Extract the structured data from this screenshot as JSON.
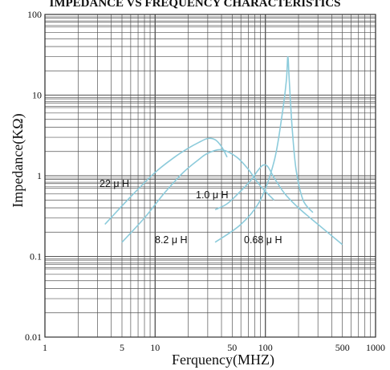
{
  "chart_data": {
    "type": "line",
    "title": "IMPEDANCE VS FREQUENCY CHARACTERISTICS",
    "xlabel": "Ferquency(MHZ)",
    "ylabel": "Impedance(KΩ)",
    "x_scale": "log",
    "y_scale": "log",
    "xlim": [
      1,
      1000
    ],
    "ylim": [
      0.01,
      100
    ],
    "grid": true,
    "x_ticks": [
      {
        "value": 1,
        "label": "1"
      },
      {
        "value": 5,
        "label": "5"
      },
      {
        "value": 10,
        "label": "10"
      },
      {
        "value": 50,
        "label": "50"
      },
      {
        "value": 100,
        "label": "100"
      },
      {
        "value": 500,
        "label": "500"
      },
      {
        "value": 1000,
        "label": "1000"
      }
    ],
    "y_ticks": [
      {
        "value": 0.01,
        "label": "0.01"
      },
      {
        "value": 0.1,
        "label": "0.1"
      },
      {
        "value": 1,
        "label": "1"
      },
      {
        "value": 10,
        "label": "10"
      },
      {
        "value": 100,
        "label": "100"
      }
    ],
    "series": [
      {
        "name": "22 μ H",
        "label": "22 μ H",
        "x": [
          3.5,
          6,
          10,
          15,
          20,
          25,
          30,
          35,
          40,
          45
        ],
        "y": [
          0.25,
          0.55,
          1.1,
          1.7,
          2.2,
          2.6,
          2.9,
          2.8,
          2.3,
          1.7
        ]
      },
      {
        "name": "8.2 μ H",
        "label": "8.2 μ H",
        "x": [
          5,
          8,
          12,
          18,
          25,
          30,
          40,
          55,
          70,
          90,
          120
        ],
        "y": [
          0.15,
          0.3,
          0.6,
          1.1,
          1.6,
          1.9,
          2.1,
          1.7,
          1.2,
          0.75,
          0.5
        ]
      },
      {
        "name": "1.0 μ H",
        "label": "1.0 μ H",
        "x": [
          35,
          45,
          60,
          75,
          85,
          95,
          105,
          120,
          150,
          200,
          300,
          500
        ],
        "y": [
          0.38,
          0.45,
          0.65,
          0.9,
          1.15,
          1.35,
          1.3,
          0.95,
          0.6,
          0.4,
          0.25,
          0.14
        ]
      },
      {
        "name": "0.68 μ H",
        "label": "0.68 μ H",
        "x": [
          35,
          60,
          90,
          120,
          140,
          155,
          160,
          165,
          175,
          190,
          220,
          270
        ],
        "y": [
          0.15,
          0.25,
          0.5,
          1.5,
          5,
          15,
          30,
          15,
          4,
          1.2,
          0.5,
          0.35
        ]
      }
    ],
    "colors": {
      "curve": "#8ccbdb",
      "grid": "#555555",
      "border": "#333333",
      "text": "#111111"
    }
  }
}
